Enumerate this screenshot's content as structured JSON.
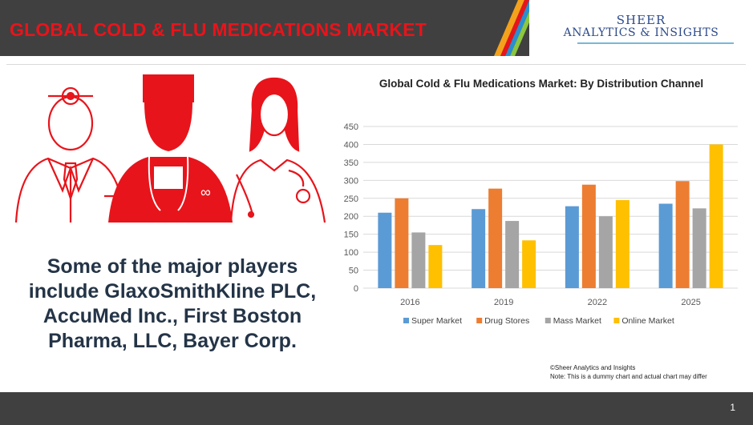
{
  "header": {
    "title": "GLOBAL COLD & FLU MEDICATIONS MARKET",
    "logo_line1": "SHEER",
    "logo_line2": "ANALYTICS & INSIGHTS"
  },
  "players_text": "Some of the major players include GlaxoSmithKline PLC, AccuMed Inc., First Boston Pharma, LLC, Bayer Corp.",
  "credit": "©Sheer Analytics and Insights",
  "note": "Note: This is a dummy chart and actual chart may differ",
  "page_number": "1",
  "colors": {
    "header_bg": "#404040",
    "title_red": "#e8141b",
    "logo_blue": "#2d4a8a",
    "illustration_red": "#e8141b"
  },
  "chart_data": {
    "type": "bar",
    "title": "Global Cold & Flu Medications Market: By Distribution Channel",
    "xlabel": "",
    "ylabel": "",
    "categories": [
      "2016",
      "2019",
      "2022",
      "2025"
    ],
    "ylim": [
      0,
      450
    ],
    "yticks": [
      0,
      50,
      100,
      150,
      200,
      250,
      300,
      350,
      400,
      450
    ],
    "grid": true,
    "legend_position": "bottom",
    "series": [
      {
        "name": "Super Market",
        "color": "#5b9bd5",
        "values": [
          210,
          220,
          228,
          235
        ]
      },
      {
        "name": "Drug Stores",
        "color": "#ed7d31",
        "values": [
          250,
          277,
          288,
          298
        ]
      },
      {
        "name": "Mass Market",
        "color": "#a5a5a5",
        "values": [
          155,
          187,
          200,
          222
        ]
      },
      {
        "name": "Online Market",
        "color": "#ffc000",
        "values": [
          120,
          133,
          245,
          400
        ]
      }
    ]
  }
}
